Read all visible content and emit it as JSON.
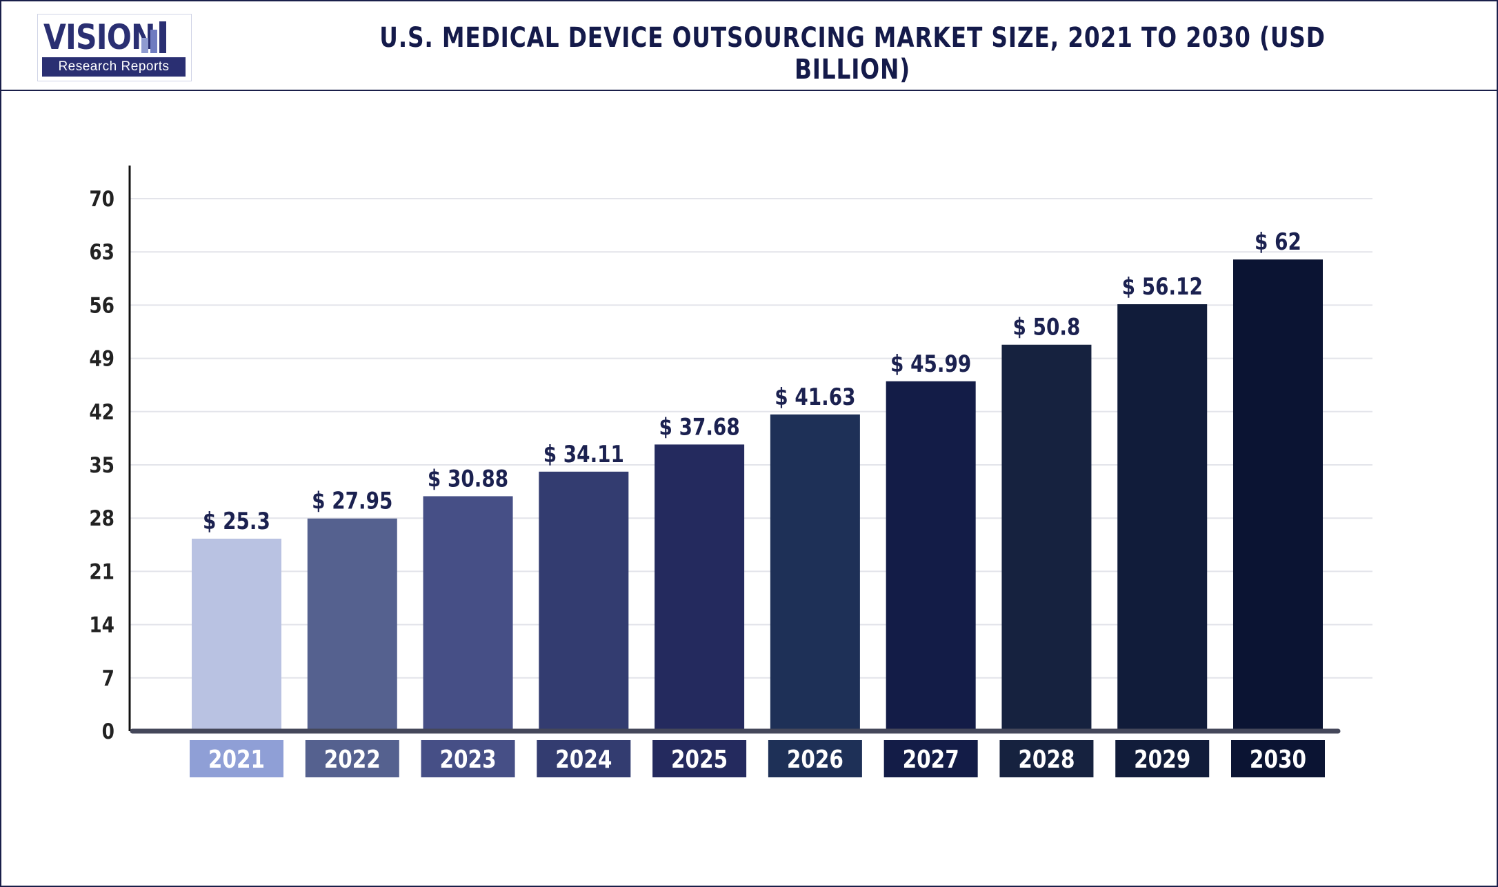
{
  "header": {
    "logo_word": "VISION",
    "logo_tagline": "Research Reports",
    "title": "U.S. MEDICAL DEVICE OUTSOURCING MARKET SIZE, 2021 TO 2030 (USD BILLION)"
  },
  "chart_data": {
    "type": "bar",
    "title": "U.S. MEDICAL DEVICE OUTSOURCING MARKET SIZE, 2021 TO 2030 (USD BILLION)",
    "xlabel": "",
    "ylabel": "",
    "categories": [
      "2021",
      "2022",
      "2023",
      "2024",
      "2025",
      "2026",
      "2027",
      "2028",
      "2029",
      "2030"
    ],
    "values": [
      25.3,
      27.95,
      30.88,
      34.11,
      37.68,
      41.63,
      45.99,
      50.8,
      56.12,
      62
    ],
    "value_labels": [
      "$ 25.3",
      "$ 27.95",
      "$ 30.88",
      "$ 34.11",
      "$ 37.68",
      "$ 41.63",
      "$ 45.99",
      "$ 50.8",
      "$ 56.12",
      "$ 62"
    ],
    "ylim": [
      0,
      70
    ],
    "yticks": [
      0,
      7,
      14,
      21,
      28,
      35,
      42,
      49,
      56,
      63,
      70
    ],
    "grid": true,
    "legend": "none",
    "bar_colors": [
      "#b9c2e2",
      "#55618f",
      "#464f86",
      "#333c70",
      "#242a5e",
      "#1e3057",
      "#131c47",
      "#16223f",
      "#111c3a",
      "#0b1433"
    ],
    "tick_box_colors": [
      "#8f9fd6",
      "#55618f",
      "#464f86",
      "#333c70",
      "#242a5e",
      "#1e3057",
      "#131c47",
      "#16223f",
      "#111c3a",
      "#0b1433"
    ],
    "label_color": "#1b2150",
    "axis_color": "#111111",
    "baseline_color": "#44475a",
    "grid_color": "#e3e4ea"
  }
}
